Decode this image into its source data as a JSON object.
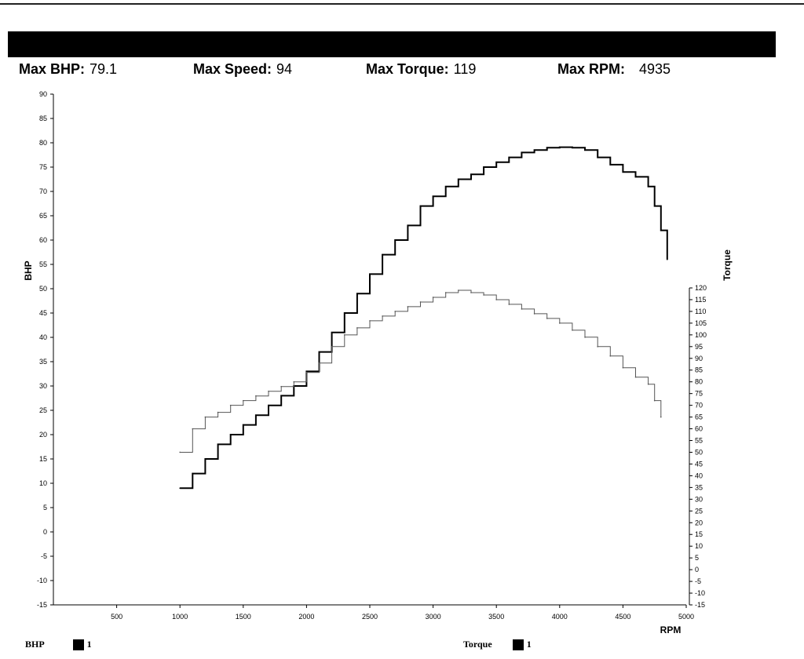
{
  "header": {
    "stats": [
      {
        "label": "Max BHP:",
        "value": "79.1"
      },
      {
        "label": "Max Speed:",
        "value": "94"
      },
      {
        "label": "Max Torque:",
        "value": "119"
      },
      {
        "label": "Max RPM:",
        "value": "4935"
      }
    ]
  },
  "legend": {
    "bhp_label": "BHP",
    "bhp_run": "1",
    "torque_label": "Torque",
    "torque_run": "1"
  },
  "colors": {
    "bhp": "#000000",
    "torque": "#555555",
    "axis": "#000000"
  },
  "chart_data": {
    "type": "line",
    "title": "",
    "xlabel": "RPM",
    "ylabel": "BHP",
    "y2label": "Torque",
    "xlim": [
      0,
      5000
    ],
    "ylim": [
      -15,
      90
    ],
    "y2lim": [
      -15,
      120
    ],
    "x_ticks": [
      500,
      1000,
      1500,
      2000,
      2500,
      3000,
      3500,
      4000,
      4500,
      5000
    ],
    "y_ticks": [
      -15,
      -10,
      -5,
      0,
      5,
      10,
      15,
      20,
      25,
      30,
      35,
      40,
      45,
      50,
      55,
      60,
      65,
      70,
      75,
      80,
      85,
      90
    ],
    "y2_ticks": [
      -15,
      -10,
      -5,
      0,
      5,
      10,
      15,
      20,
      25,
      30,
      35,
      40,
      45,
      50,
      55,
      60,
      65,
      70,
      75,
      80,
      85,
      90,
      95,
      100,
      105,
      110,
      115,
      120
    ],
    "grid": false,
    "legend_position": "bottom",
    "series": [
      {
        "name": "BHP",
        "axis": "left",
        "x": [
          1000,
          1100,
          1200,
          1300,
          1400,
          1500,
          1600,
          1700,
          1800,
          1900,
          2000,
          2100,
          2200,
          2300,
          2400,
          2500,
          2600,
          2700,
          2800,
          2900,
          3000,
          3100,
          3200,
          3300,
          3400,
          3500,
          3600,
          3700,
          3800,
          3900,
          4000,
          4100,
          4200,
          4300,
          4400,
          4500,
          4600,
          4700,
          4750,
          4800,
          4850
        ],
        "y": [
          9,
          12,
          15,
          18,
          20,
          22,
          24,
          26,
          28,
          30,
          33,
          37,
          41,
          45,
          49,
          53,
          57,
          60,
          63,
          67,
          69,
          71,
          72.5,
          73.5,
          75,
          76,
          77,
          78,
          78.5,
          79,
          79.1,
          79,
          78.5,
          77,
          75.5,
          74,
          73,
          71,
          67,
          62,
          56
        ]
      },
      {
        "name": "Torque",
        "axis": "right",
        "x": [
          1000,
          1100,
          1200,
          1300,
          1400,
          1500,
          1600,
          1700,
          1800,
          1900,
          2000,
          2100,
          2200,
          2300,
          2400,
          2500,
          2600,
          2700,
          2800,
          2900,
          3000,
          3100,
          3200,
          3300,
          3400,
          3500,
          3600,
          3700,
          3800,
          3900,
          4000,
          4100,
          4200,
          4300,
          4400,
          4500,
          4600,
          4700,
          4750,
          4800
        ],
        "y": [
          50,
          60,
          65,
          67,
          70,
          72,
          74,
          76,
          78,
          80,
          84,
          88,
          95,
          100,
          103,
          106,
          108,
          110,
          112,
          114,
          116,
          118,
          119,
          118,
          117,
          115,
          113,
          111,
          109,
          107,
          105,
          102,
          99,
          95,
          91,
          86,
          82,
          79,
          72,
          65
        ]
      }
    ]
  }
}
